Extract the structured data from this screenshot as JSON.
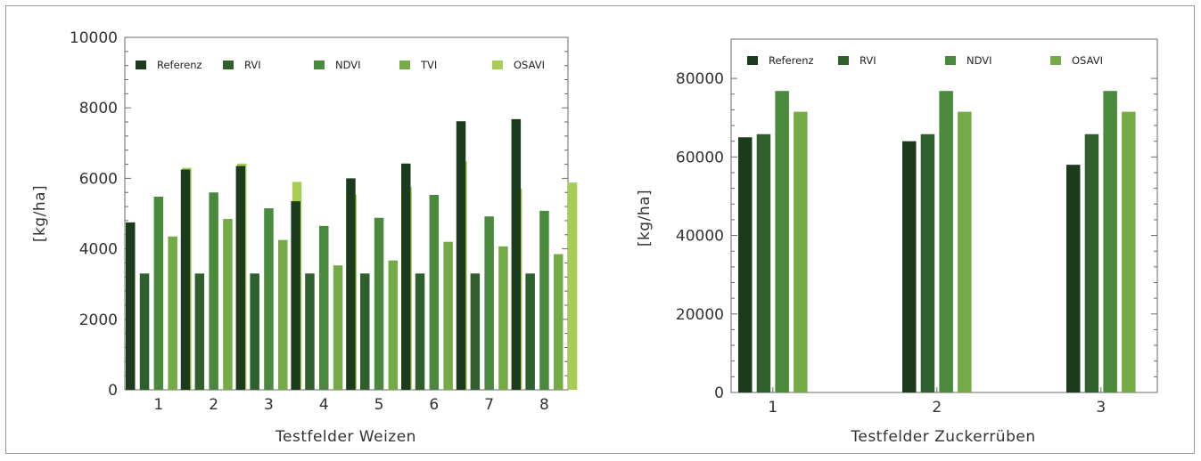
{
  "chart_data": [
    {
      "type": "bar",
      "categories": [
        "1",
        "2",
        "3",
        "4",
        "5",
        "6",
        "7",
        "8"
      ],
      "series": [
        {
          "name": "Referenz",
          "color": "#1c3a1c",
          "values": [
            4750,
            6250,
            6350,
            5350,
            6000,
            6420,
            7620,
            7680
          ]
        },
        {
          "name": "RVI",
          "color": "#2f5f2c",
          "values": [
            3300,
            3300,
            3300,
            3300,
            3300,
            3300,
            3300,
            3300
          ]
        },
        {
          "name": "NDVI",
          "color": "#4a8a3c",
          "values": [
            5480,
            5600,
            5150,
            4650,
            4880,
            5530,
            4920,
            5080
          ]
        },
        {
          "name": "TVI",
          "color": "#74ab46",
          "values": [
            4350,
            4850,
            4250,
            3530,
            3670,
            4200,
            4070,
            3850
          ]
        },
        {
          "name": "OSAVI",
          "color": "#a9cc54",
          "values": [
            6300,
            6420,
            5900,
            5540,
            5750,
            6480,
            5700,
            5880
          ]
        }
      ],
      "xlabel": "Testfelder Weizen",
      "ylabel": "[kg/ha]",
      "ylim": [
        0,
        10000
      ],
      "yticks": [
        "0",
        "2000",
        "4000",
        "6000",
        "8000",
        "10000"
      ],
      "legend": "top"
    },
    {
      "type": "bar",
      "categories": [
        "1",
        "2",
        "3"
      ],
      "series": [
        {
          "name": "Referenz",
          "color": "#1c3a1c",
          "values": [
            65000,
            64000,
            58000
          ]
        },
        {
          "name": "RVI",
          "color": "#2f5f2c",
          "values": [
            65800,
            65800,
            65800
          ]
        },
        {
          "name": "NDVI",
          "color": "#4a8a3c",
          "values": [
            76800,
            76800,
            76800
          ]
        },
        {
          "name": "OSAVI",
          "color": "#74ab46",
          "values": [
            71500,
            71500,
            71500
          ]
        }
      ],
      "xlabel": "Testfelder Zuckerrüben",
      "ylabel": "[kg/ha]",
      "ylim": [
        0,
        90000
      ],
      "yticks": [
        "0",
        "20000",
        "40000",
        "60000",
        "80000"
      ],
      "legend": "top"
    }
  ]
}
